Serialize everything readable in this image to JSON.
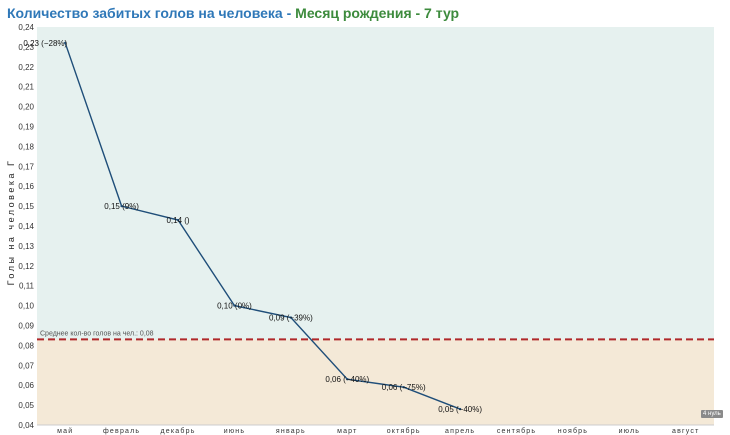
{
  "title": {
    "part1": "Количество забитых голов на человека - ",
    "part2": "Месяц рождения - 7 тур"
  },
  "badge": "4 нуль",
  "colors": {
    "upper_band": "#e6f1ef",
    "lower_band": "#f4e9d7",
    "line": "#1f4e79",
    "mean_line": "#b0282a",
    "title_blue": "#2f78b8",
    "title_green": "#3d8b3d"
  },
  "chart_data": {
    "type": "line",
    "ylabel": "Голы на человека Г",
    "xlabel": "",
    "ylim": [
      0.04,
      0.24
    ],
    "y_ticks": [
      "0,04",
      "0,05",
      "0,06",
      "0,07",
      "0,08",
      "0,09",
      "0,10",
      "0,11",
      "0,12",
      "0,13",
      "0,14",
      "0,15",
      "0,16",
      "0,17",
      "0,18",
      "0,19",
      "0,20",
      "0,21",
      "0,22",
      "0,23",
      "0,24"
    ],
    "categories": [
      "май",
      "февраль",
      "декабрь",
      "июнь",
      "январь",
      "март",
      "октябрь",
      "апрель",
      "сентябрь",
      "ноябрь",
      "июль",
      "август"
    ],
    "values": [
      0.232,
      0.15,
      0.143,
      0.1,
      0.094,
      0.063,
      0.059,
      0.048,
      null,
      null,
      null,
      null
    ],
    "point_labels": [
      "0,23 (−28%)",
      "0,15 (9%)",
      "0,14 ()",
      "0,10 (0%)",
      "0,09 (−39%)",
      "0,06 (−40%)",
      "0,06 (−75%)",
      "0,05 (−40%)",
      "",
      "",
      "",
      ""
    ],
    "reference_line": {
      "value": 0.083,
      "label": "Среднее кол-во голов на чел.: 0,08"
    },
    "grid": false,
    "legend": "none"
  }
}
